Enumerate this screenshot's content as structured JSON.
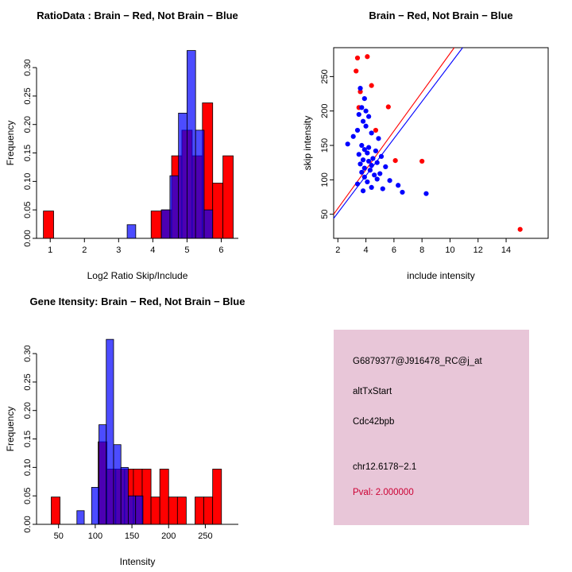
{
  "figure": {
    "background": "#ffffff"
  },
  "colors": {
    "brain_red": "#FF0000",
    "not_brain_blue": "#0000FF",
    "overlap_purple": "#7A00B4",
    "axis": "#000000"
  },
  "chart_data": [
    {
      "id": "ratio-histogram",
      "type": "bar",
      "title": "RatioData : Brain − Red, Not Brain − Blue",
      "xlabel": "Log2 Ratio Skip/Include",
      "ylabel": "Frequency",
      "xlim": [
        0.6,
        6.5
      ],
      "ylim": [
        0,
        0.335
      ],
      "xticks": [
        1,
        2,
        3,
        4,
        5,
        6
      ],
      "xtick_labels": [
        "1",
        "2",
        "3",
        "4",
        "5",
        "6"
      ],
      "yticks": [
        0,
        0.05,
        0.1,
        0.15,
        0.2,
        0.25,
        0.3
      ],
      "ytick_labels": [
        "0.00",
        "0.05",
        "0.10",
        "0.15",
        "0.20",
        "0.25",
        "0.30"
      ],
      "grid": false,
      "legend": "none",
      "series": [
        {
          "name": "Brain (red)",
          "color": "#FF0000",
          "opacity": 1,
          "binwidth": 0.3,
          "bins": [
            [
              0.8,
              0.048
            ],
            [
              3.95,
              0.048
            ],
            [
              4.25,
              0.05
            ],
            [
              4.55,
              0.145
            ],
            [
              4.85,
              0.19
            ],
            [
              5.15,
              0.145
            ],
            [
              5.45,
              0.238
            ],
            [
              5.75,
              0.097
            ],
            [
              6.05,
              0.145
            ]
          ]
        },
        {
          "name": "Not Brain (blue)",
          "color": "#0000FF",
          "opacity": 0.7,
          "binwidth": 0.25,
          "bins": [
            [
              3.25,
              0.024
            ],
            [
              4.25,
              0.05
            ],
            [
              4.5,
              0.11
            ],
            [
              4.75,
              0.22
            ],
            [
              5.0,
              0.33
            ],
            [
              5.25,
              0.19
            ],
            [
              5.5,
              0.05
            ]
          ]
        }
      ]
    },
    {
      "id": "intensity-scatter",
      "type": "scatter",
      "title": "Brain − Red, Not Brain − Blue",
      "xlabel": "include intensity",
      "ylabel": "skip intensity",
      "xlim": [
        1.7,
        17
      ],
      "ylim": [
        15,
        292
      ],
      "xticks": [
        2,
        4,
        6,
        8,
        10,
        12,
        14
      ],
      "xtick_labels": [
        "2",
        "4",
        "6",
        "8",
        "10",
        "12",
        "14"
      ],
      "yticks": [
        50,
        100,
        150,
        200,
        250
      ],
      "ytick_labels": [
        "50",
        "100",
        "150",
        "200",
        "250"
      ],
      "grid": false,
      "legend": "none",
      "series": [
        {
          "name": "Brain (red)",
          "color": "#FF0000",
          "points": [
            [
              3.4,
              277
            ],
            [
              4.1,
              279
            ],
            [
              3.3,
              258
            ],
            [
              4.4,
              237
            ],
            [
              3.6,
              228
            ],
            [
              3.5,
              205
            ],
            [
              5.6,
              206
            ],
            [
              4.7,
              172
            ],
            [
              6.1,
              128
            ],
            [
              8.0,
              127
            ],
            [
              15.0,
              28
            ]
          ]
        },
        {
          "name": "Not Brain (blue)",
          "color": "#0000FF",
          "points": [
            [
              3.6,
              233
            ],
            [
              3.9,
              218
            ],
            [
              3.7,
              205
            ],
            [
              4.0,
              200
            ],
            [
              3.5,
              195
            ],
            [
              4.2,
              192
            ],
            [
              3.8,
              185
            ],
            [
              4.0,
              178
            ],
            [
              3.4,
              172
            ],
            [
              4.4,
              168
            ],
            [
              3.1,
              163
            ],
            [
              4.9,
              160
            ],
            [
              2.7,
              152
            ],
            [
              3.7,
              150
            ],
            [
              4.2,
              147
            ],
            [
              3.9,
              144
            ],
            [
              4.7,
              142
            ],
            [
              4.1,
              139
            ],
            [
              3.5,
              137
            ],
            [
              5.1,
              134
            ],
            [
              4.5,
              131
            ],
            [
              3.8,
              129
            ],
            [
              4.2,
              127
            ],
            [
              4.8,
              125
            ],
            [
              3.6,
              123
            ],
            [
              4.4,
              121
            ],
            [
              5.4,
              119
            ],
            [
              3.9,
              117
            ],
            [
              4.3,
              114
            ],
            [
              3.7,
              111
            ],
            [
              5.0,
              109
            ],
            [
              4.6,
              107
            ],
            [
              3.9,
              104
            ],
            [
              4.8,
              101
            ],
            [
              5.7,
              99
            ],
            [
              4.1,
              97
            ],
            [
              3.4,
              94
            ],
            [
              6.3,
              92
            ],
            [
              4.4,
              89
            ],
            [
              5.2,
              87
            ],
            [
              3.8,
              84
            ],
            [
              6.6,
              82
            ],
            [
              8.3,
              80
            ]
          ]
        }
      ],
      "lines": [
        {
          "name": "brain-fit-line",
          "color": "#FF0000",
          "x1": 1.7,
          "y1": 50,
          "x2": 10.3,
          "y2": 292
        },
        {
          "name": "not-brain-fit-line",
          "color": "#0000FF",
          "x1": 1.7,
          "y1": 44,
          "x2": 10.9,
          "y2": 292
        }
      ]
    },
    {
      "id": "gene-intensity-histogram",
      "type": "bar",
      "title": "Gene Itensity: Brain − Red, Not Brain − Blue",
      "xlabel": "Intensity",
      "ylabel": "Frequency",
      "xlim": [
        20,
        295
      ],
      "ylim": [
        0,
        0.335
      ],
      "xticks": [
        50,
        100,
        150,
        200,
        250
      ],
      "xtick_labels": [
        "50",
        "100",
        "150",
        "200",
        "250"
      ],
      "yticks": [
        0,
        0.05,
        0.1,
        0.15,
        0.2,
        0.25,
        0.3
      ],
      "ytick_labels": [
        "0.00",
        "0.05",
        "0.10",
        "0.15",
        "0.20",
        "0.25",
        "0.30"
      ],
      "grid": false,
      "legend": "none",
      "series": [
        {
          "name": "Brain (red)",
          "color": "#FF0000",
          "opacity": 1,
          "binwidth": 12,
          "bins": [
            [
              40,
              0.048
            ],
            [
              104,
              0.145
            ],
            [
              116,
              0.097
            ],
            [
              128,
              0.097
            ],
            [
              140,
              0.097
            ],
            [
              152,
              0.097
            ],
            [
              164,
              0.097
            ],
            [
              176,
              0.048
            ],
            [
              188,
              0.097
            ],
            [
              200,
              0.048
            ],
            [
              212,
              0.048
            ],
            [
              236,
              0.048
            ],
            [
              248,
              0.048
            ],
            [
              260,
              0.097
            ]
          ]
        },
        {
          "name": "Not Brain (blue)",
          "color": "#0000FF",
          "opacity": 0.7,
          "binwidth": 10,
          "bins": [
            [
              75,
              0.024
            ],
            [
              95,
              0.065
            ],
            [
              105,
              0.175
            ],
            [
              115,
              0.325
            ],
            [
              125,
              0.14
            ],
            [
              135,
              0.1
            ],
            [
              145,
              0.05
            ],
            [
              155,
              0.05
            ]
          ]
        }
      ]
    }
  ],
  "info_panel": {
    "bg": "#E8C6D8",
    "lines": [
      "G6879377@J916478_RC@j_at",
      "altTxStart",
      "Cdc42bpb",
      "chr12.6178−2.1"
    ],
    "pval": "Pval: 2.000000",
    "pval_color": "#CC0033"
  }
}
